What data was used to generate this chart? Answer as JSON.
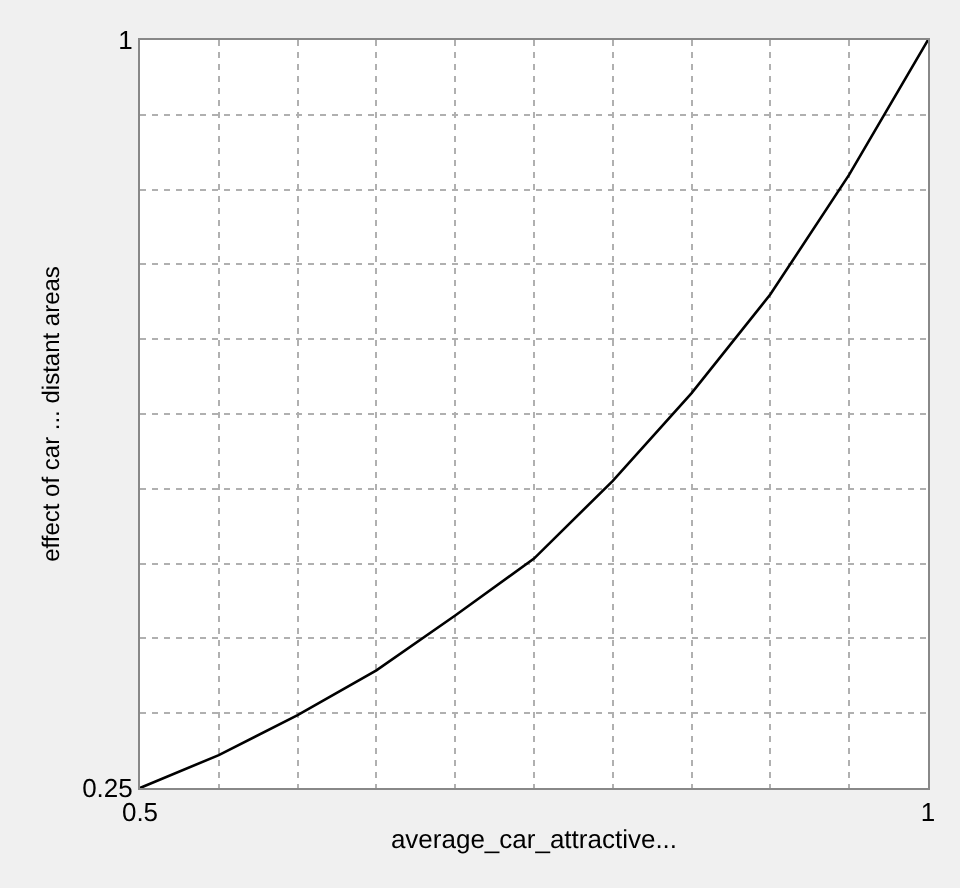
{
  "chart_data": {
    "type": "line",
    "xlabel": "average_car_attractive...",
    "ylabel": "effect of car ... distant areas",
    "x": [
      0.5,
      0.55,
      0.6,
      0.65,
      0.7,
      0.75,
      0.8,
      0.85,
      0.9,
      0.95,
      1.0
    ],
    "series": [
      {
        "color": "#000000",
        "values": [
          0.25,
          0.283,
          0.323,
          0.368,
          0.423,
          0.48,
          0.558,
          0.646,
          0.745,
          0.865,
          1.0
        ]
      }
    ],
    "xlim": [
      0.5,
      1
    ],
    "ylim": [
      0.25,
      1
    ],
    "xticks": [
      0.5,
      {
        "value": 0.55,
        "label": null
      },
      {
        "value": 0.6,
        "label": null
      },
      {
        "value": 0.65,
        "label": null
      },
      {
        "value": 0.7,
        "label": null
      },
      {
        "value": 0.75,
        "label": null
      },
      {
        "value": 0.8,
        "label": null
      },
      {
        "value": 0.85,
        "label": null
      },
      {
        "value": 0.9,
        "label": null
      },
      {
        "value": 0.95,
        "label": null
      },
      1
    ],
    "yticks": [
      0.25,
      {
        "value": 0.325,
        "label": null
      },
      {
        "value": 0.4,
        "label": null
      },
      {
        "value": 0.475,
        "label": null
      },
      {
        "value": 0.55,
        "label": null
      },
      {
        "value": 0.625,
        "label": null
      },
      {
        "value": 0.7,
        "label": null
      },
      {
        "value": 0.775,
        "label": null
      },
      {
        "value": 0.85,
        "label": null
      },
      {
        "value": 0.925,
        "label": null
      },
      1
    ],
    "grid": true,
    "line_style": "solid",
    "marker": "none"
  }
}
